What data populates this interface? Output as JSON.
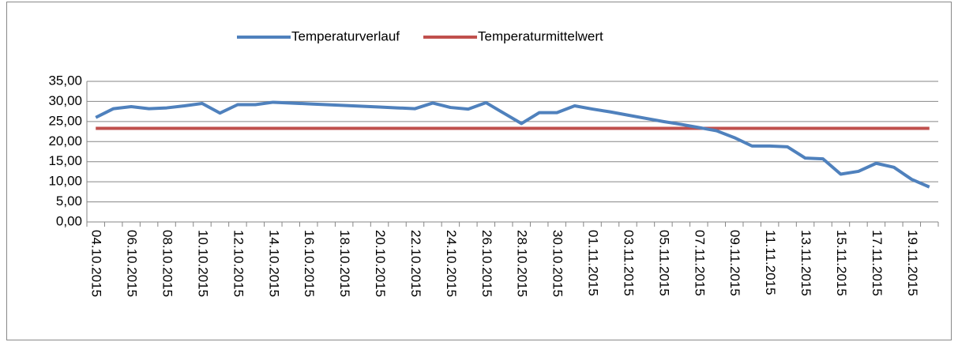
{
  "chart_data": {
    "type": "line",
    "categories": [
      "04.10.2015",
      null,
      "06.10.2015",
      null,
      "08.10.2015",
      null,
      "10.10.2015",
      null,
      "12.10.2015",
      null,
      "14.10.2015",
      null,
      "16.10.2015",
      null,
      "18.10.2015",
      null,
      "20.10.2015",
      null,
      "22.10.2015",
      null,
      "24.10.2015",
      null,
      "26.10.2015",
      null,
      "28.10.2015",
      null,
      "30.10.2015",
      null,
      "01.11.2015",
      null,
      "03.11.2015",
      null,
      "05.11.2015",
      null,
      "07.11.2015",
      null,
      "09.11.2015",
      null,
      "11.11.2015",
      null,
      "13.11.2015",
      null,
      "15.11.2015",
      null,
      "17.11.2015",
      null,
      "19.11.2015",
      null
    ],
    "series": [
      {
        "name": "Temperaturverlauf",
        "color": "#4f81bd",
        "values": [
          26.0,
          28.2,
          28.7,
          28.2,
          28.4,
          28.9,
          29.5,
          27.1,
          29.2,
          29.2,
          29.8,
          29.6,
          29.4,
          29.2,
          29.0,
          28.8,
          28.6,
          28.4,
          28.2,
          29.6,
          28.5,
          28.1,
          29.7,
          27.1,
          24.5,
          27.2,
          27.2,
          28.9,
          28.1,
          27.4,
          26.6,
          25.8,
          25.0,
          24.3,
          23.5,
          22.7,
          21.0,
          18.9,
          18.9,
          18.7,
          15.9,
          15.7,
          11.9,
          12.6,
          14.6,
          13.6,
          10.6,
          8.7
        ]
      },
      {
        "name": "Temperaturmittelwert",
        "color": "#c0504d",
        "values": [
          23.3,
          23.3,
          23.3,
          23.3,
          23.3,
          23.3,
          23.3,
          23.3,
          23.3,
          23.3,
          23.3,
          23.3,
          23.3,
          23.3,
          23.3,
          23.3,
          23.3,
          23.3,
          23.3,
          23.3,
          23.3,
          23.3,
          23.3,
          23.3,
          23.3,
          23.3,
          23.3,
          23.3,
          23.3,
          23.3,
          23.3,
          23.3,
          23.3,
          23.3,
          23.3,
          23.3,
          23.3,
          23.3,
          23.3,
          23.3,
          23.3,
          23.3,
          23.3,
          23.3,
          23.3,
          23.3,
          23.3,
          23.3
        ]
      }
    ],
    "ylim": [
      0,
      35
    ],
    "yticks": [
      {
        "value": 0,
        "label": "0,00"
      },
      {
        "value": 5,
        "label": "5,00"
      },
      {
        "value": 10,
        "label": "10,00"
      },
      {
        "value": 15,
        "label": "15,00"
      },
      {
        "value": 20,
        "label": "20,00"
      },
      {
        "value": 25,
        "label": "25,00"
      },
      {
        "value": 30,
        "label": "30,00"
      },
      {
        "value": 35,
        "label": "35,00"
      }
    ],
    "grid": true,
    "legend": "top"
  }
}
